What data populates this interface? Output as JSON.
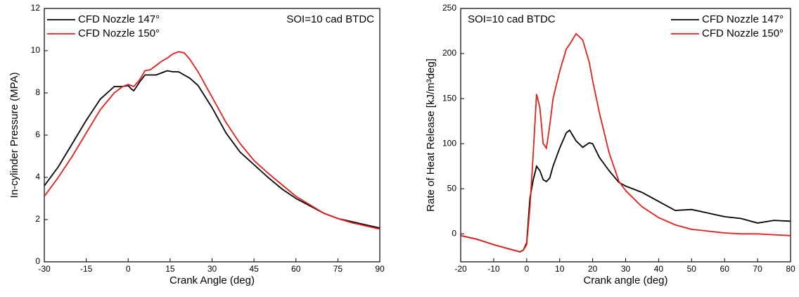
{
  "chart_data": [
    {
      "type": "line",
      "annotation": "SOI=10 cad BTDC",
      "xlabel": "Crank Angle (deg)",
      "ylabel": "In-cylinder Pressure (MPA)",
      "x": [
        -30,
        -25,
        -20,
        -15,
        -10,
        -5,
        -2,
        0,
        1,
        2,
        4,
        6,
        8,
        10,
        12,
        14,
        16,
        18,
        20,
        22,
        25,
        30,
        35,
        40,
        45,
        50,
        55,
        60,
        65,
        70,
        75,
        80,
        85,
        90
      ],
      "series": [
        {
          "name": "CFD  Nozzle 147°",
          "color": "#000000",
          "values": [
            3.6,
            4.5,
            5.6,
            6.7,
            7.7,
            8.3,
            8.3,
            8.35,
            8.2,
            8.1,
            8.5,
            8.85,
            8.85,
            8.85,
            8.95,
            9.05,
            9.0,
            9.0,
            8.85,
            8.7,
            8.35,
            7.3,
            6.1,
            5.2,
            4.6,
            4.0,
            3.45,
            3.0,
            2.65,
            2.3,
            2.05,
            1.9,
            1.75,
            1.6
          ]
        },
        {
          "name": "CFD  Nozzle 150°",
          "color": "#e0201b",
          "values": [
            3.1,
            4.0,
            5.0,
            6.1,
            7.2,
            8.0,
            8.3,
            8.4,
            8.35,
            8.3,
            8.6,
            9.05,
            9.1,
            9.3,
            9.5,
            9.65,
            9.85,
            9.95,
            9.9,
            9.6,
            9.0,
            7.8,
            6.6,
            5.6,
            4.8,
            4.2,
            3.65,
            3.1,
            2.7,
            2.3,
            2.05,
            1.85,
            1.7,
            1.55
          ]
        }
      ],
      "xlim": [
        -30,
        90
      ],
      "xticks": [
        -30,
        -15,
        0,
        15,
        30,
        45,
        60,
        75,
        90
      ],
      "ylim": [
        0,
        12
      ],
      "yticks": [
        0,
        2,
        4,
        6,
        8,
        10,
        12
      ],
      "legend": "upper left"
    },
    {
      "type": "line",
      "annotation": "SOI=10 cad BTDC",
      "xlabel": "Crank angle (deg)",
      "ylabel": "Rate of Heat Release [kJ/m³deg]",
      "x": [
        -20,
        -15,
        -10,
        -5,
        -2,
        -1,
        0,
        1,
        2,
        3,
        4,
        5,
        6,
        7,
        8,
        10,
        12,
        13,
        15,
        17,
        19,
        20,
        22,
        25,
        28,
        30,
        35,
        40,
        45,
        50,
        55,
        60,
        65,
        70,
        75,
        80
      ],
      "series": [
        {
          "name": "CFD  Nozzle 147°",
          "color": "#000000",
          "values": [
            -2,
            -6,
            -12,
            -17,
            -20,
            -18,
            -10,
            40,
            60,
            75,
            70,
            60,
            58,
            62,
            75,
            95,
            112,
            115,
            103,
            96,
            101,
            100,
            85,
            70,
            57,
            53,
            46,
            36,
            26,
            27,
            23,
            19,
            17,
            12,
            15,
            14
          ]
        },
        {
          "name": "CFD  Nozzle 150°",
          "color": "#e0201b",
          "values": [
            -2,
            -6,
            -12,
            -17,
            -20,
            -18,
            -12,
            30,
            90,
            155,
            140,
            100,
            95,
            120,
            150,
            180,
            205,
            210,
            222,
            215,
            190,
            170,
            135,
            90,
            58,
            48,
            30,
            18,
            10,
            5,
            3,
            1,
            0,
            0,
            -1,
            -2
          ]
        }
      ],
      "xlim": [
        -20,
        80
      ],
      "xticks": [
        -20,
        -10,
        0,
        10,
        20,
        30,
        40,
        50,
        60,
        70,
        80
      ],
      "ylim": [
        -31,
        250
      ],
      "yticks": [
        0,
        50,
        100,
        150,
        200,
        250
      ],
      "legend": "upper right"
    }
  ]
}
